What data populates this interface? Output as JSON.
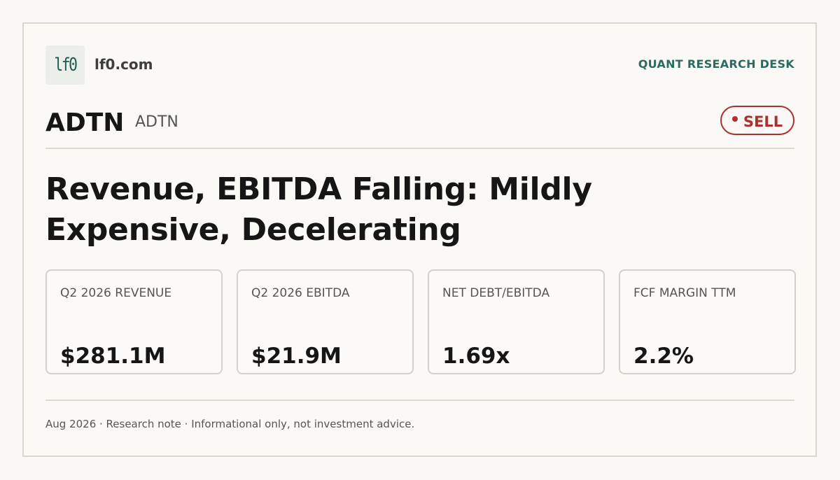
{
  "brand": {
    "logo_text": "lf0",
    "domain": "lf0.com",
    "desk": "QUANT RESEARCH DESK"
  },
  "security": {
    "ticker": "ADTN",
    "subticker": "ADTN",
    "rating": "SELL",
    "rating_color": "#a83232"
  },
  "headline": "Revenue, EBITDA Falling: Mildly Expensive, Decelerating",
  "metrics": [
    {
      "label": "Q2 2026 REVENUE",
      "value": "$281.1M"
    },
    {
      "label": "Q2 2026 EBITDA",
      "value": "$21.9M"
    },
    {
      "label": "NET DEBT/EBITDA",
      "value": "1.69x"
    },
    {
      "label": "FCF MARGIN TTM",
      "value": "2.2%"
    }
  ],
  "footer": "Aug 2026 · Research note · Informational only, not investment advice.",
  "colors": {
    "accent": "#2a6b62",
    "logo_bg": "#ebeee9",
    "background": "#faf9f6"
  }
}
